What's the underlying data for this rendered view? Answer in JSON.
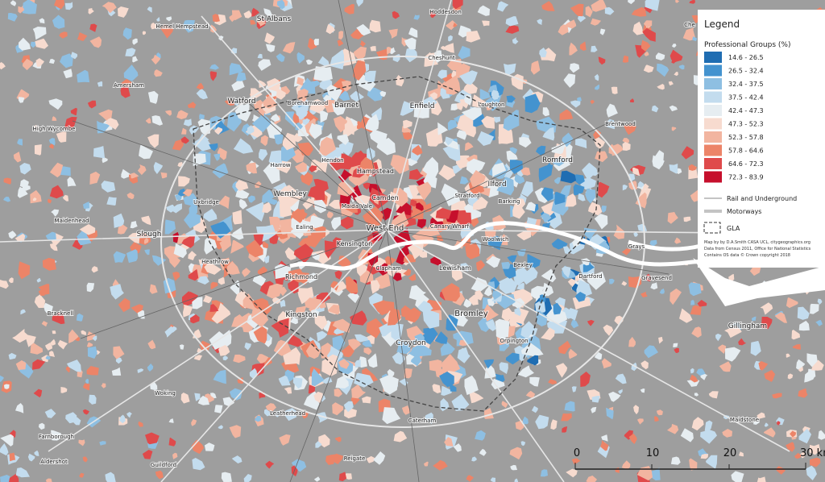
{
  "map": {
    "places": [
      "St Albans",
      "Hoddesdon",
      "Hemel Hempstead",
      "Cheshunt",
      "Amersham",
      "Watford",
      "Borehamwood",
      "Barnet",
      "Enfield",
      "Loughton",
      "Brentwood",
      "High Wycombe",
      "Hampstead",
      "Hendon",
      "Harrow",
      "Romford",
      "Ilford",
      "Wembley",
      "Camden",
      "Stratford",
      "Barking",
      "Uxbridge",
      "Maida Vale",
      "Maidenhead",
      "West End",
      "Canary Wharf",
      "Ealing",
      "Slough",
      "Kensington",
      "Woolwich",
      "Grays",
      "Heathrow",
      "Clapham",
      "Lewisham",
      "Bexley",
      "Dartford",
      "Gravesend",
      "Richmond",
      "Bracknell",
      "Kingston",
      "Bromley",
      "Gillingham",
      "Croydon",
      "Orpington",
      "Woking",
      "Leatherhead",
      "Caterham",
      "Maidstone",
      "Farnborough",
      "Aldershot",
      "Guildford",
      "Reigate",
      "Che"
    ],
    "legend": {
      "title": "Legend",
      "subtitle": "Professional Groups (%)",
      "classes": [
        {
          "label": "14.6 - 26.5",
          "color": "#1f6db2"
        },
        {
          "label": "26.5 - 32.4",
          "color": "#4493cf"
        },
        {
          "label": "32.4 - 37.5",
          "color": "#8ebfe2"
        },
        {
          "label": "37.5 - 42.4",
          "color": "#c3dcee"
        },
        {
          "label": "42.4 - 47.3",
          "color": "#e6edf1"
        },
        {
          "label": "47.3 - 52.3",
          "color": "#f7dbcf"
        },
        {
          "label": "52.3 - 57.8",
          "color": "#f2b5a0"
        },
        {
          "label": "57.8 - 64.6",
          "color": "#ec8468"
        },
        {
          "label": "64.6 - 72.3",
          "color": "#df4a4b"
        },
        {
          "label": "72.3 - 83.9",
          "color": "#c60f2c"
        }
      ],
      "lines": [
        "Rail and Underground",
        "Motorways",
        "GLA"
      ],
      "credits": [
        "Map by by D.A.Smith CASA UCL, citygeographics.org",
        "Data from Census 2011, Office for National Statistics",
        "Contains OS data © Crown copyright 2018"
      ]
    },
    "scale_labels": [
      "0",
      "10",
      "20",
      "30 km"
    ]
  }
}
